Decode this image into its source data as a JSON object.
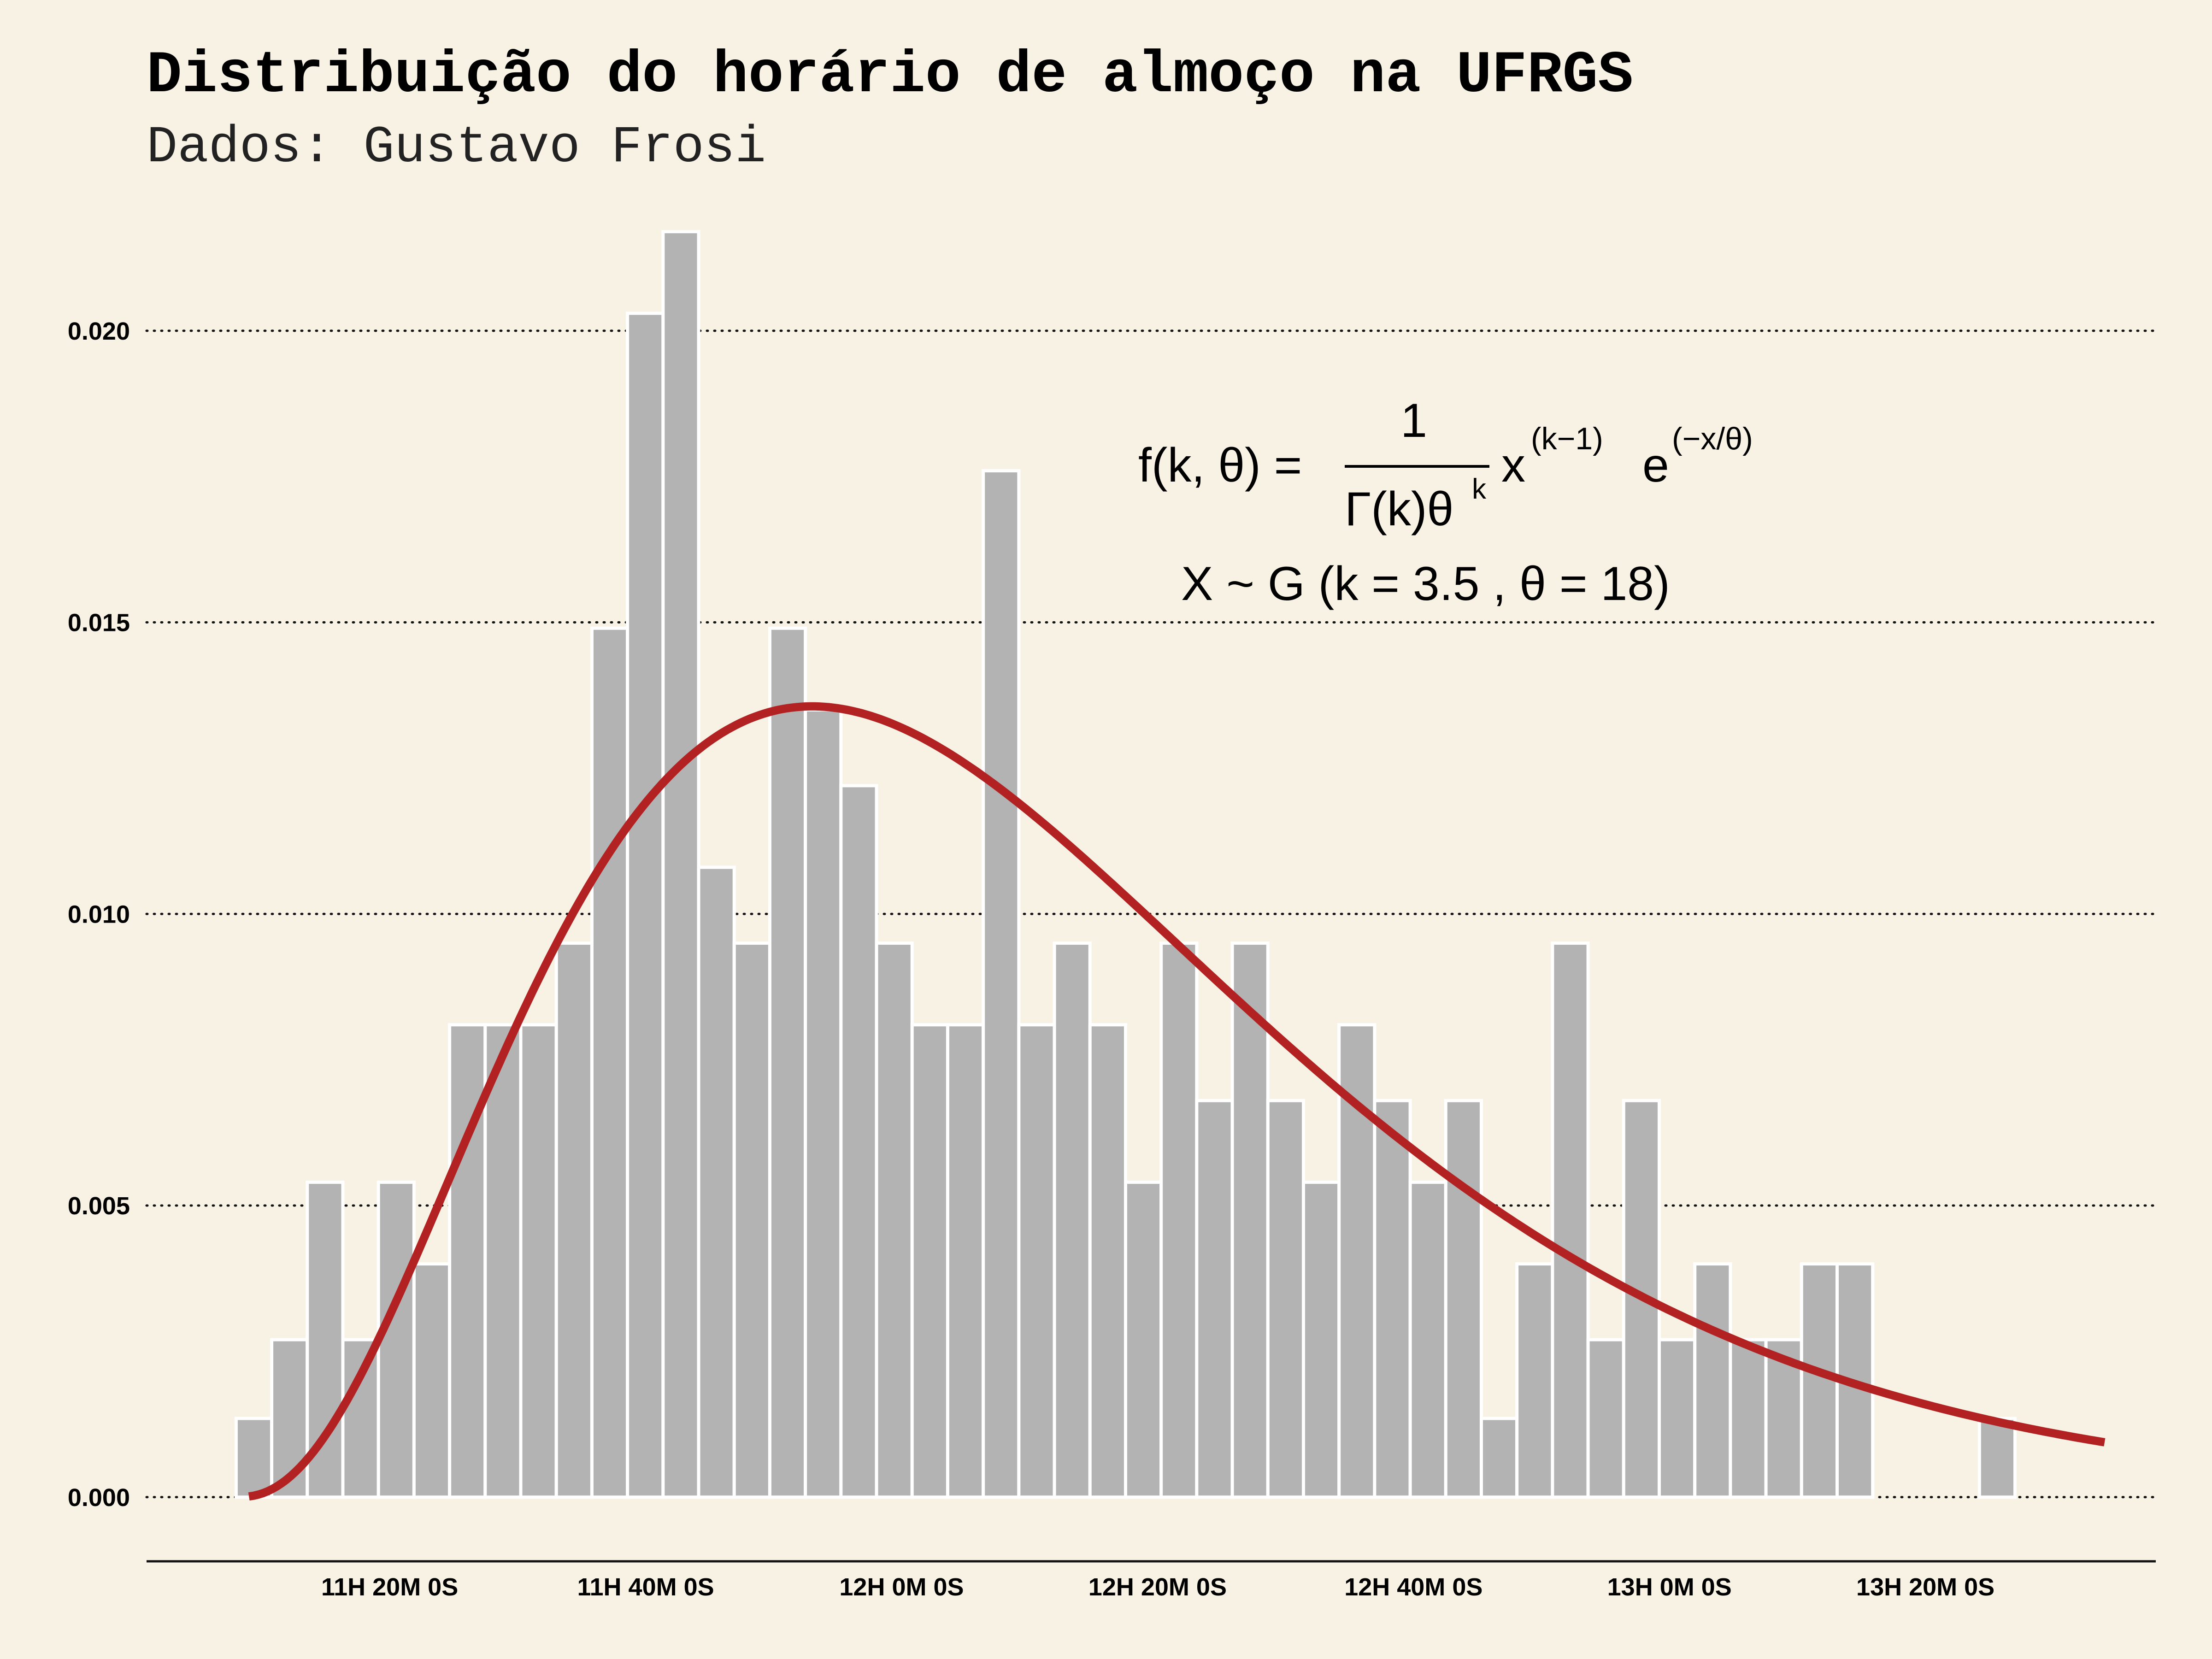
{
  "title": "Distribuição do horário de almoço na UFRGS",
  "subtitle": "Dados: Gustavo Frosi",
  "formula": {
    "line1_lhs": "f(k, θ) =",
    "numerator": "1",
    "denominator": "Γ(k)θ",
    "denominator_sup": "k",
    "x_base": "x",
    "x_exp": "(k−1)",
    "e_base": "e",
    "e_exp": "(−x/θ)",
    "line2": "X ~ G (k = 3.5 , θ = 18)"
  },
  "chart_data": {
    "type": "bar",
    "x_unit": "minutes since 11:00",
    "x_ticks": [
      {
        "value": 20,
        "label": "11H 20M 0S"
      },
      {
        "value": 40,
        "label": "11H 40M 0S"
      },
      {
        "value": 60,
        "label": "12H 0M 0S"
      },
      {
        "value": 80,
        "label": "12H 20M 0S"
      },
      {
        "value": 100,
        "label": "12H 40M 0S"
      },
      {
        "value": 120,
        "label": "13H 0M 0S"
      },
      {
        "value": 140,
        "label": "13H 20M 0S"
      }
    ],
    "y_ticks": [
      0.0,
      0.005,
      0.01,
      0.015,
      0.02
    ],
    "y_tick_labels": [
      "0.000",
      "0.005",
      "0.010",
      "0.015",
      "0.020"
    ],
    "xlim": [
      1,
      158
    ],
    "ylim": [
      -0.0011,
      0.0218
    ],
    "grid": "horizontal dotted",
    "bins": {
      "start": 8.0,
      "width": 2.78,
      "values": [
        0.00135,
        0.0027,
        0.0054,
        0.0027,
        0.0054,
        0.004,
        0.0081,
        0.0081,
        0.0081,
        0.0095,
        0.0149,
        0.0203,
        0.0217,
        0.0108,
        0.0095,
        0.0149,
        0.0135,
        0.0122,
        0.0095,
        0.0081,
        0.0081,
        0.0176,
        0.0081,
        0.0095,
        0.0081,
        0.0054,
        0.0095,
        0.0068,
        0.0095,
        0.0068,
        0.0054,
        0.0081,
        0.0068,
        0.0054,
        0.0068,
        0.00135,
        0.004,
        0.0095,
        0.0027,
        0.0068,
        0.0027,
        0.004,
        0.0027,
        0.0027,
        0.004,
        0.004,
        0.0,
        0.0,
        0.0,
        0.00135
      ]
    },
    "fit_curve": {
      "distribution": "gamma",
      "k": 3.5,
      "theta": 18,
      "x_offset": 8.0,
      "x_range": [
        9,
        154
      ],
      "color": "#b22222"
    },
    "bar_color": "#b3b3b3",
    "background": "#f8f2e5"
  }
}
